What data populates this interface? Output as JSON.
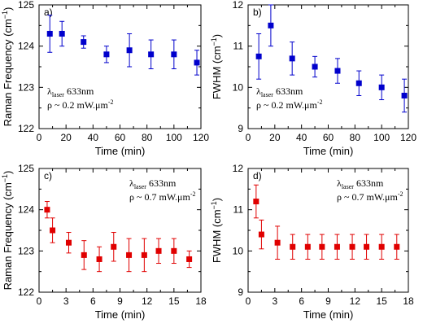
{
  "chart_data": [
    {
      "type": "scatter",
      "panel_label": "a)",
      "xlabel": "Time (min)",
      "ylabel": "Raman Frequency (cm",
      "ylabel_sup": "−1",
      "ylabel_end": ")",
      "xlim": [
        0,
        120
      ],
      "ylim": [
        122,
        125
      ],
      "xticks": [
        0,
        20,
        40,
        60,
        80,
        100,
        120
      ],
      "yticks": [
        122,
        123,
        124,
        125
      ],
      "annotation": {
        "lambda": "λ",
        "laser_sub": "laser",
        "wavelength": "633nm",
        "rho": "ρ ~ 0.2 mW.μm",
        "rho_sup": "-2",
        "position": "bottom-left"
      },
      "series": [
        {
          "color": "#0000cc",
          "x": [
            8,
            17,
            33,
            50,
            67,
            83,
            100,
            117
          ],
          "y": [
            124.3,
            124.3,
            124.1,
            123.8,
            123.9,
            123.8,
            123.8,
            123.6
          ],
          "err": [
            0.45,
            0.3,
            0.15,
            0.2,
            0.4,
            0.35,
            0.35,
            0.3
          ]
        }
      ]
    },
    {
      "type": "scatter",
      "panel_label": "b)",
      "xlabel": "Time (min)",
      "ylabel": "FWHM (cm",
      "ylabel_sup": "−1",
      "ylabel_end": ")",
      "xlim": [
        0,
        120
      ],
      "ylim": [
        9,
        12
      ],
      "xticks": [
        0,
        20,
        40,
        60,
        80,
        100,
        120
      ],
      "yticks": [
        9,
        10,
        11,
        12
      ],
      "annotation": {
        "lambda": "λ",
        "laser_sub": "laser",
        "wavelength": "633nm",
        "rho": "ρ ~ 0.2 mW.μm",
        "rho_sup": "-2",
        "position": "bottom-left"
      },
      "series": [
        {
          "color": "#0000cc",
          "x": [
            8,
            17,
            33,
            50,
            67,
            83,
            100,
            117
          ],
          "y": [
            10.75,
            11.5,
            10.7,
            10.5,
            10.4,
            10.1,
            10.0,
            9.8
          ],
          "err": [
            0.55,
            0.5,
            0.4,
            0.25,
            0.3,
            0.3,
            0.3,
            0.4
          ]
        }
      ]
    },
    {
      "type": "scatter",
      "panel_label": "c)",
      "xlabel": "Time (min)",
      "ylabel": "Raman Frequency (cm",
      "ylabel_sup": "−1",
      "ylabel_end": ")",
      "xlim": [
        0,
        18
      ],
      "ylim": [
        122,
        125
      ],
      "xticks": [
        0,
        3,
        6,
        9,
        12,
        15,
        18
      ],
      "yticks": [
        122,
        123,
        124,
        125
      ],
      "annotation": {
        "lambda": "λ",
        "laser_sub": "laser",
        "wavelength": "633nm",
        "rho": "ρ ~ 0.7 mW.μm",
        "rho_sup": "-2",
        "position": "top-right"
      },
      "series": [
        {
          "color": "#e00000",
          "x": [
            0.9,
            1.5,
            3.3,
            5.0,
            6.7,
            8.3,
            10.0,
            11.7,
            13.3,
            15.0,
            16.7
          ],
          "y": [
            124.0,
            123.5,
            123.2,
            122.9,
            122.8,
            123.1,
            122.9,
            122.9,
            123.0,
            123.0,
            122.8
          ],
          "err": [
            0.2,
            0.3,
            0.25,
            0.35,
            0.3,
            0.35,
            0.4,
            0.4,
            0.3,
            0.3,
            0.2
          ]
        }
      ]
    },
    {
      "type": "scatter",
      "panel_label": "d)",
      "xlabel": "Time (min)",
      "ylabel": "FWHM (cm",
      "ylabel_sup": "−1",
      "ylabel_end": ")",
      "xlim": [
        0,
        18
      ],
      "ylim": [
        9,
        12
      ],
      "xticks": [
        0,
        3,
        6,
        9,
        12,
        15,
        18
      ],
      "yticks": [
        9,
        10,
        11,
        12
      ],
      "annotation": {
        "lambda": "λ",
        "laser_sub": "laser",
        "wavelength": "633nm",
        "rho": "ρ ~ 0.7 mW.μm",
        "rho_sup": "-2",
        "position": "top-right"
      },
      "series": [
        {
          "color": "#e00000",
          "x": [
            0.9,
            1.5,
            3.3,
            5.0,
            6.7,
            8.3,
            10.0,
            11.7,
            13.3,
            15.0,
            16.7
          ],
          "y": [
            11.2,
            10.4,
            10.2,
            10.1,
            10.1,
            10.1,
            10.1,
            10.1,
            10.1,
            10.1,
            10.1
          ],
          "err": [
            0.4,
            0.35,
            0.4,
            0.3,
            0.3,
            0.3,
            0.3,
            0.3,
            0.3,
            0.3,
            0.3
          ]
        }
      ]
    }
  ]
}
